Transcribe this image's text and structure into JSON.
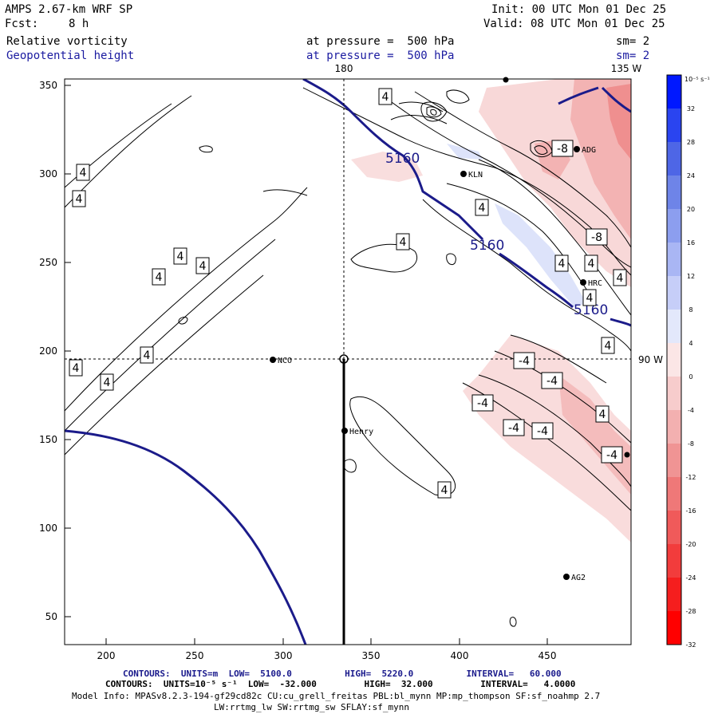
{
  "header": {
    "title": "AMPS 2.67-km WRF SP",
    "forecast_label": "Fcst:",
    "forecast_value": "8 h",
    "init": "Init: 00 UTC Mon 01 Dec 25",
    "valid": "Valid: 08 UTC Mon 01 Dec 25",
    "field1_name": "Relative vorticity",
    "field1_level": "at pressure =  500 hPa",
    "field1_sm": "sm= 2",
    "field2_name": "Geopotential height",
    "field2_level": "at pressure =  500 hPa",
    "field2_sm": "sm= 2"
  },
  "map": {
    "x_ticks": [
      "200",
      "250",
      "300",
      "350",
      "400",
      "450"
    ],
    "y_ticks": [
      "50",
      "100",
      "150",
      "200",
      "250",
      "300",
      "350"
    ],
    "meridian_label_top": "180",
    "meridian_label_top_right": "135 W",
    "meridian_label_right": "90 W",
    "height_contour_labels": [
      "5160",
      "5160",
      "5160"
    ],
    "vorticity_labels": [
      "4",
      "4",
      "4",
      "4",
      "4",
      "4",
      "4",
      "4",
      "4",
      "4",
      "4",
      "4",
      "4",
      "4",
      "4",
      "4",
      "4",
      "4",
      "-8",
      "-8",
      "-4",
      "-4",
      "-4",
      "-4",
      "-4",
      "-4"
    ],
    "stations": [
      {
        "name": "NCO"
      },
      {
        "name": "Henry"
      },
      {
        "name": "KLN"
      },
      {
        "name": "HRC"
      },
      {
        "name": "ADG"
      },
      {
        "name": "AG2"
      }
    ]
  },
  "colorbar": {
    "unit": "10⁻⁵ s⁻¹",
    "labels": [
      "32",
      "28",
      "24",
      "20",
      "16",
      "12",
      "8",
      "4",
      "0",
      "-4",
      "-8",
      "-12",
      "-16",
      "-20",
      "-24",
      "-28",
      "-32"
    ],
    "colors": [
      "#0018ff",
      "#2a44f0",
      "#4e66e6",
      "#6e84e8",
      "#8c9eef",
      "#a9b6f4",
      "#c6cef8",
      "#e3e8fb",
      "#fbe6e6",
      "#f7cccc",
      "#f3b0b0",
      "#f09494",
      "#ef7878",
      "#f05a5a",
      "#f23c3c",
      "#f51e1e",
      "#ff0000"
    ]
  },
  "footer": {
    "line1": "CONTOURS:  UNITS=m  LOW=  5100.0          HIGH=  5220.0          INTERVAL=   60.000",
    "line2": "CONTOURS:  UNITS=10⁻⁵ s⁻¹  LOW=  -32.000         HIGH=  32.000         INTERVAL=   4.0000",
    "line3": "Model Info: MPASv8.2.3-194-gf29cd82c CU:cu_grell_freitas PBL:bl_mynn MP:mp_thompson SF:sf_noahmp 2.7",
    "line4": "LW:rrtmg_lw SW:rrtmg_sw SFLAY:sf_mynn"
  }
}
